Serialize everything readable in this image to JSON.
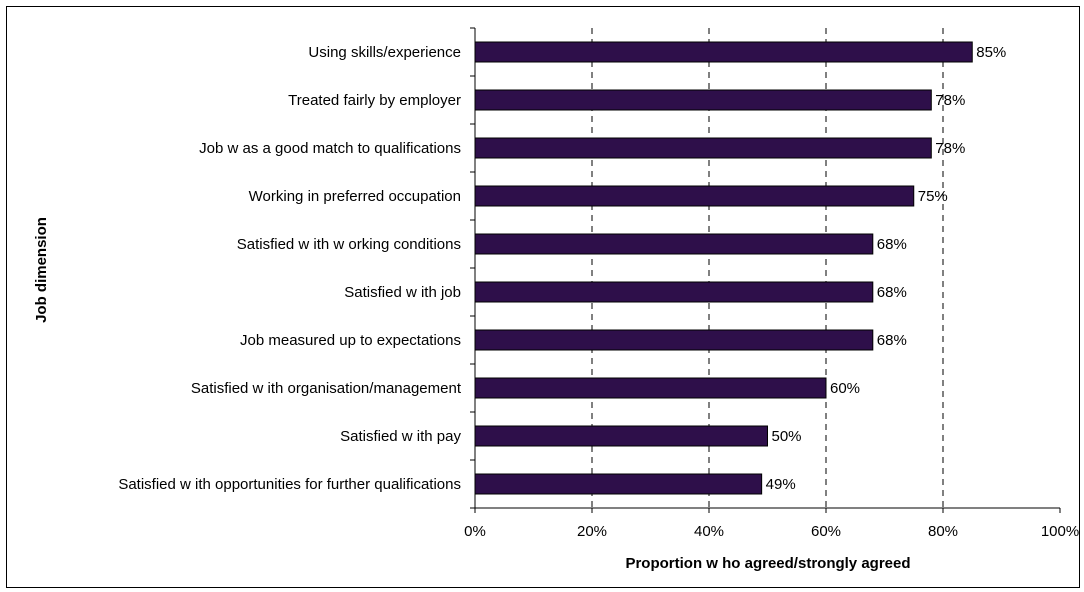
{
  "chart_data": {
    "type": "bar",
    "orientation": "horizontal",
    "categories": [
      "Using skills/experience",
      "Treated fairly by employer",
      "Job w as a good match to qualifications",
      "Working in preferred occupation",
      "Satisfied w ith w orking conditions",
      "Satisfied w ith job",
      "Job measured up to expectations",
      "Satisfied w ith organisation/management",
      "Satisfied w ith pay",
      "Satisfied w ith opportunities for further qualifications"
    ],
    "values": [
      85,
      78,
      78,
      75,
      68,
      68,
      68,
      60,
      50,
      49
    ],
    "data_labels": [
      "85%",
      "78%",
      "78%",
      "75%",
      "68%",
      "68%",
      "68%",
      "60%",
      "50%",
      "49%"
    ],
    "xlabel": "Proportion w ho agreed/strongly agreed",
    "ylabel": "Job dimension",
    "xlim": [
      0,
      100
    ],
    "x_ticks": [
      0,
      20,
      40,
      60,
      80,
      100
    ],
    "x_tick_labels": [
      "0%",
      "20%",
      "40%",
      "60%",
      "80%",
      "100%"
    ],
    "grid": "vertical dashed",
    "legend": "none",
    "bar_color": "#2e0f4a"
  }
}
